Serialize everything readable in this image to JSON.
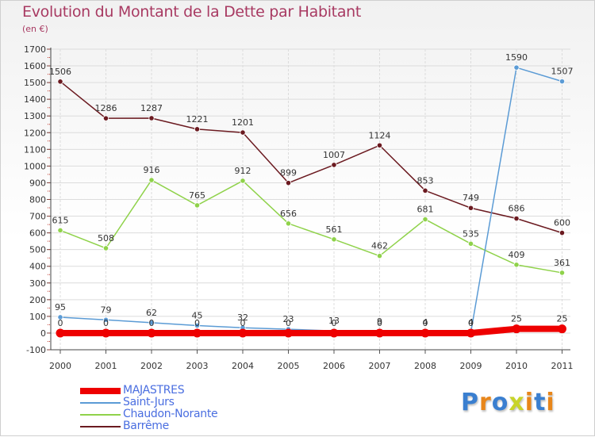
{
  "title": "Evolution du Montant de la Dette par Habitant",
  "subtitle": "(en €)",
  "brand": {
    "text": "Proxiti",
    "letter_colors": [
      "#3a7fd0",
      "#e8861a",
      "#3a7fd0",
      "#c8d42a",
      "#e8861a",
      "#3a7fd0",
      "#e8861a"
    ]
  },
  "chart_data": {
    "type": "line",
    "title": "Evolution du Montant de la Dette par Habitant",
    "ylabel": "(en €)",
    "x": [
      "2000",
      "2001",
      "2002",
      "2003",
      "2004",
      "2005",
      "2006",
      "2007",
      "2008",
      "2009",
      "2010",
      "2011"
    ],
    "ylim": [
      -100,
      1700
    ],
    "yticks": [
      "-100",
      "0",
      "100",
      "200",
      "300",
      "400",
      "500",
      "600",
      "700",
      "800",
      "900",
      "1000",
      "1100",
      "1200",
      "1300",
      "1400",
      "1500",
      "1600",
      "1700"
    ],
    "grid": true,
    "legend_position": "bottom-left",
    "series": [
      {
        "name": "Barrême",
        "color": "#6b1a20",
        "values": [
          1506,
          1286,
          1287,
          1221,
          1201,
          899,
          1007,
          1124,
          853,
          749,
          686,
          600
        ],
        "labels": [
          "1506",
          "1286",
          "1287",
          "1221",
          "1201",
          "899",
          "1007",
          "1124",
          "853",
          "749",
          "686",
          "600"
        ]
      },
      {
        "name": "Chaudon-Norante",
        "color": "#8fd24a",
        "values": [
          615,
          508,
          916,
          765,
          912,
          656,
          561,
          462,
          681,
          535,
          409,
          361
        ],
        "labels": [
          "615",
          "508",
          "916",
          "765",
          "912",
          "656",
          "561",
          "462",
          "681",
          "535",
          "409",
          "361"
        ]
      },
      {
        "name": "Saint-Jurs",
        "color": "#5b9bd5",
        "values": [
          95,
          79,
          62,
          45,
          32,
          23,
          13,
          9,
          4,
          4,
          1590,
          1507
        ],
        "labels": [
          "95",
          "79",
          "62",
          "45",
          "32",
          "23",
          "13",
          "9",
          "4",
          "4",
          "1590",
          "1507"
        ]
      },
      {
        "name": "MAJASTRES",
        "color": "#ee0000",
        "values": [
          0,
          0,
          0,
          0,
          0,
          0,
          0,
          0,
          0,
          0,
          25,
          25
        ],
        "labels": [
          "0",
          "0",
          "0",
          "0",
          "0",
          "0",
          "0",
          "0",
          "0",
          "0",
          "25",
          "25"
        ]
      }
    ]
  },
  "legend": [
    {
      "name": "MAJASTRES",
      "color": "#ee0000",
      "thickness": "thick"
    },
    {
      "name": "Saint-Jurs",
      "color": "#5b9bd5",
      "thickness": "thin"
    },
    {
      "name": "Chaudon-Norante",
      "color": "#8fd24a",
      "thickness": "thin"
    },
    {
      "name": "Barrême",
      "color": "#6b1a20",
      "thickness": "thin"
    }
  ]
}
